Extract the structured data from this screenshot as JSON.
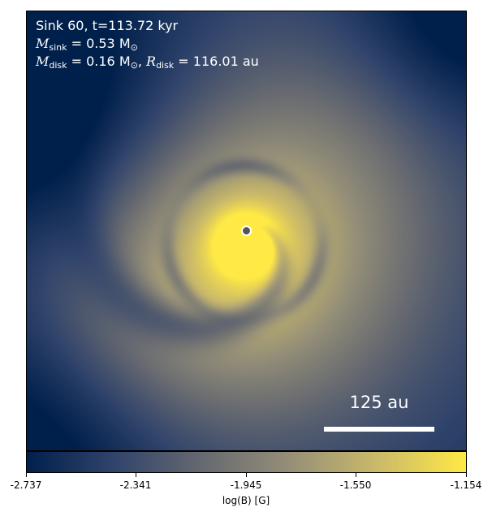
{
  "annotation": {
    "line1": "Sink 60, t=113.72 kyr",
    "m_sink_sym": "M",
    "m_sink_sub": "sink",
    "m_sink_val": " = 0.53 M",
    "m_sink_sun": "⊙",
    "m_disk_sym": "M",
    "m_disk_sub": "disk",
    "m_disk_val": " = 0.16 M",
    "m_disk_sun": "⊙",
    "sep": ", ",
    "r_disk_sym": "R",
    "r_disk_sub": "disk",
    "r_disk_val": " = 116.01 au"
  },
  "scalebar": {
    "label": "125 au"
  },
  "colorbar": {
    "label": "log(B) [G]",
    "ticks": [
      "-2.737",
      "-2.341",
      "-1.945",
      "-1.550",
      "-1.154"
    ],
    "min": -2.737,
    "max": -1.154,
    "colormap": "cividis",
    "colors": [
      "#00204c",
      "#31446b",
      "#666970",
      "#958f78",
      "#cbba69",
      "#ffe945"
    ]
  }
}
